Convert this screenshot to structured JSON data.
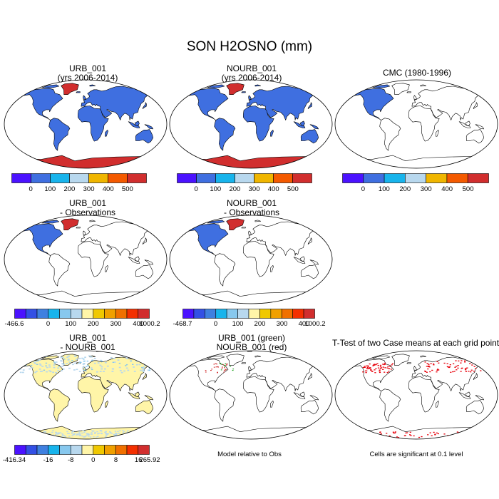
{
  "title": "SON H2OSNO (mm)",
  "panels": [
    {
      "title1": "URB_001",
      "title2": "(yrs 2006-2014)"
    },
    {
      "title1": "NOURB_001",
      "title2": "(yrs 2006-2014)"
    },
    {
      "title1": "CMC (1980-1996)",
      "title2": ""
    },
    {
      "title1": "URB_001",
      "title2": "- Observations"
    },
    {
      "title1": "NOURB_001",
      "title2": "- Observations"
    },
    {
      "title1": "URB_001",
      "title2": "- NOURB_001"
    },
    {
      "title1": "URB_001 (green)",
      "title2": "NOURB_001 (red)"
    },
    {
      "title1": "T-Test of two Case means at each grid point",
      "title2": ""
    }
  ],
  "colorbars": {
    "abs": {
      "colors": [
        "#4b12ff",
        "#3f6fe0",
        "#18b4ec",
        "#b8d8ee",
        "#f0b600",
        "#f45a00",
        "#d12e2e"
      ],
      "labels": [
        "0",
        "100",
        "200",
        "300",
        "400",
        "500"
      ]
    },
    "diffobs1": {
      "colors": [
        "#4b12ff",
        "#3350e5",
        "#3f80e0",
        "#18b4ec",
        "#87c8ee",
        "#b8d8ee",
        "#fff5a8",
        "#f0c800",
        "#f0a000",
        "#f07000",
        "#f43000",
        "#d12e2e"
      ],
      "labels": [
        "-466.6",
        "0",
        "100",
        "200",
        "300",
        "400",
        "1000.2"
      ]
    },
    "diffobs2": {
      "colors": [
        "#4b12ff",
        "#3350e5",
        "#3f80e0",
        "#18b4ec",
        "#87c8ee",
        "#b8d8ee",
        "#fff5a8",
        "#f0c800",
        "#f0a000",
        "#f07000",
        "#f43000",
        "#d12e2e"
      ],
      "labels": [
        "-468.7",
        "0",
        "100",
        "200",
        "300",
        "400",
        "1000.2"
      ]
    },
    "diffcase": {
      "colors": [
        "#4b12ff",
        "#3350e5",
        "#3f80e0",
        "#18b4ec",
        "#87c8ee",
        "#b8d8ee",
        "#fff5a8",
        "#f0c800",
        "#f0a000",
        "#f07000",
        "#f43000",
        "#d12e2e"
      ],
      "labels": [
        "-416.34",
        "-16",
        "-8",
        "0",
        "8",
        "16",
        "265.92"
      ]
    }
  },
  "notes": {
    "model_rel": "Model relative to Obs",
    "significance": "Cells are significant at 0.1 level"
  },
  "colors": {
    "snow_blue": "#3f6fe0",
    "snow_red": "#d12e2e",
    "diff_yellow": "#fff5a8",
    "sig_red": "#e8000a",
    "green": "#1aa01a"
  }
}
